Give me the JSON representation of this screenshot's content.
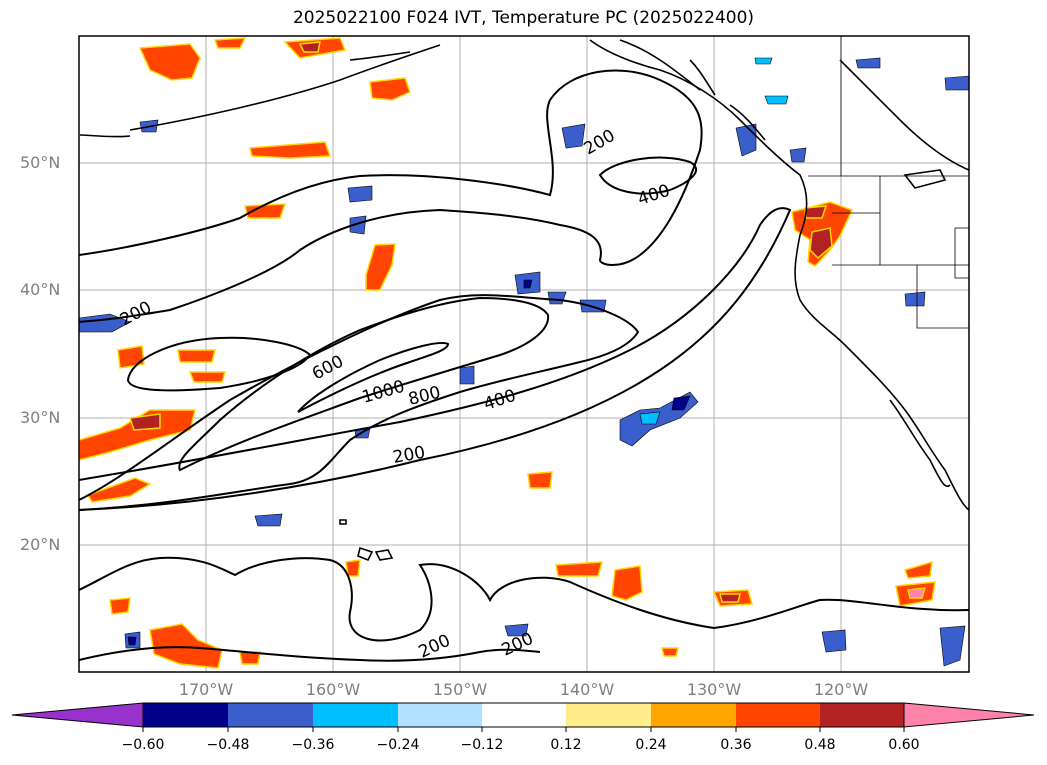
{
  "title": "2025022100 F024 IVT, Temperature PC (2025022400)",
  "lat_labels": [
    "50°N",
    "40°N",
    "30°N",
    "20°N"
  ],
  "lon_labels": [
    "170°W",
    "160°W",
    "150°W",
    "140°W",
    "130°W",
    "120°W"
  ],
  "contour_labels": [
    "200",
    "400",
    "200",
    "600",
    "1000",
    "800",
    "400",
    "200",
    "200",
    "200"
  ],
  "colorbar": {
    "ticks": [
      "−0.60",
      "−0.48",
      "−0.36",
      "−0.24",
      "−0.12",
      "0.12",
      "0.24",
      "0.36",
      "0.48",
      "0.60"
    ],
    "colors": [
      "#9932cc",
      "#00008b",
      "#3a5fcd",
      "#00bfff",
      "#b0e2ff",
      "#ffffff",
      "#ffec8b",
      "#ffa500",
      "#ff4500",
      "#b22222",
      "#ff82ab"
    ]
  }
}
